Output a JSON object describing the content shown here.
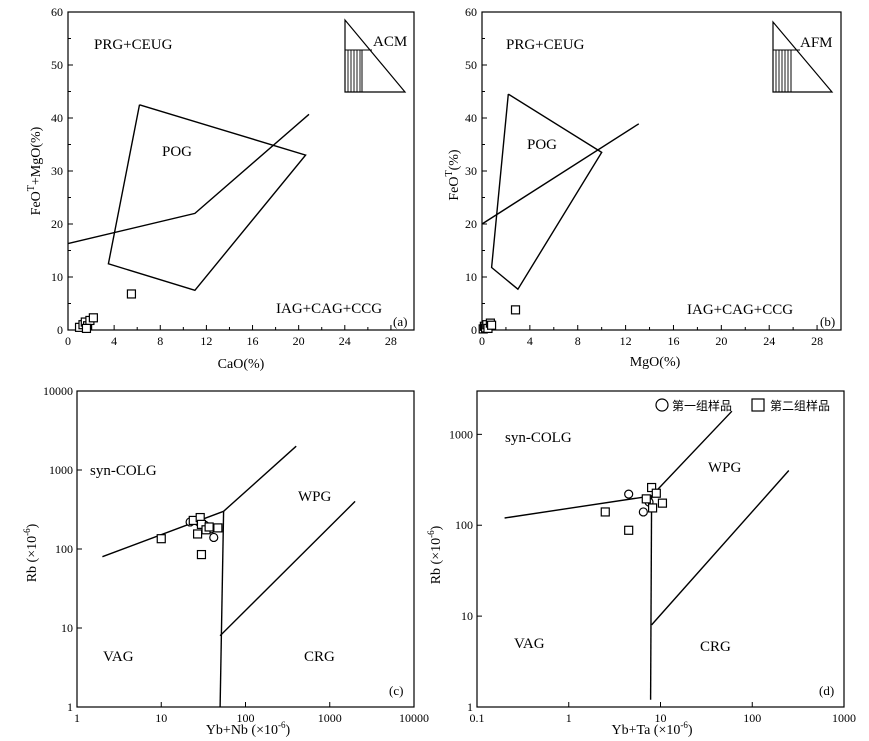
{
  "panels": {
    "a": {
      "label": "(a)",
      "xlabel": "CaO(%)",
      "ylabel": "FeO",
      "ylabel_sup": "T",
      "ylabel_rest": "+MgO(%)",
      "xticks": [
        "0",
        "4",
        "8",
        "12",
        "16",
        "20",
        "24",
        "28"
      ],
      "yticks": [
        "0",
        "10",
        "20",
        "30",
        "40",
        "50",
        "60"
      ],
      "regions": {
        "prg": "PRG+CEUG",
        "pog": "POG",
        "iag": "IAG+CAG+CCG"
      },
      "inset": "ACM"
    },
    "b": {
      "label": "(b)",
      "xlabel": "MgO(%)",
      "ylabel": "FeO",
      "ylabel_sup": "T",
      "ylabel_rest": "(%)",
      "xticks": [
        "0",
        "4",
        "8",
        "12",
        "16",
        "20",
        "24",
        "28"
      ],
      "yticks": [
        "0",
        "10",
        "20",
        "30",
        "40",
        "50",
        "60"
      ],
      "regions": {
        "prg": "PRG+CEUG",
        "pog": "POG",
        "iag": "IAG+CAG+CCG"
      },
      "inset": "AFM"
    },
    "c": {
      "label": "(c)",
      "xlabel_main": "Yb+Nb (×10",
      "xlabel_sup": "-6",
      "xlabel_end": ")",
      "ylabel_main": "Rb (×10",
      "ylabel_sup": "-6",
      "ylabel_end": ")",
      "xticks": [
        "1",
        "10",
        "100",
        "1000",
        "10000"
      ],
      "yticks": [
        "1",
        "10",
        "100",
        "1000",
        "10000"
      ],
      "regions": {
        "syn": "syn-COLG",
        "wpg": "WPG",
        "vag": "VAG",
        "crg": "CRG"
      }
    },
    "d": {
      "label": "(d)",
      "xlabel_main": "Yb+Ta (×10",
      "xlabel_sup": "-6",
      "xlabel_end": ")",
      "ylabel_main": "Rb (×10",
      "ylabel_sup": "-6",
      "ylabel_end": ")",
      "xticks": [
        "0.1",
        "1",
        "10",
        "100",
        "1000"
      ],
      "yticks": [
        "1",
        "10",
        "100",
        "1000"
      ],
      "regions": {
        "syn": "syn-COLG",
        "wpg": "WPG",
        "vag": "VAG",
        "crg": "CRG"
      }
    }
  },
  "legend": {
    "group1": "第一组样品",
    "group2": "第二组样品"
  },
  "chart_data": [
    {
      "type": "scatter",
      "id": "a",
      "xlabel": "CaO(%)",
      "ylabel": "FeOT+MgO(%)",
      "xlim": [
        0,
        30
      ],
      "ylim": [
        0,
        60
      ],
      "boundaries": [
        {
          "name": "POG",
          "points": [
            [
              6.2,
              42.5
            ],
            [
              20.6,
              33
            ],
            [
              11,
              7.5
            ],
            [
              3.5,
              12.5
            ],
            [
              6.2,
              42.5
            ]
          ]
        },
        {
          "name": "line",
          "points": [
            [
              0,
              16.3
            ],
            [
              11,
              22
            ],
            [
              20.9,
              40.7
            ]
          ]
        }
      ],
      "series": [
        {
          "name": "第二组样品",
          "marker": "square",
          "points": [
            [
              1.0,
              0.5
            ],
            [
              1.3,
              1.0
            ],
            [
              1.5,
              1.5
            ],
            [
              1.7,
              0.8
            ],
            [
              1.9,
              1.8
            ],
            [
              2.2,
              2.3
            ],
            [
              1.6,
              0.3
            ],
            [
              5.5,
              6.8
            ]
          ]
        }
      ]
    },
    {
      "type": "scatter",
      "id": "b",
      "xlabel": "MgO(%)",
      "ylabel": "FeOT(%)",
      "xlim": [
        0,
        30
      ],
      "ylim": [
        0,
        60
      ],
      "boundaries": [
        {
          "name": "POG",
          "points": [
            [
              2.2,
              44.5
            ],
            [
              10,
              33.5
            ],
            [
              3,
              7.7
            ],
            [
              0.8,
              11.8
            ],
            [
              2.2,
              44.5
            ]
          ]
        },
        {
          "name": "line",
          "points": [
            [
              0,
              20
            ],
            [
              13.1,
              38.9
            ]
          ]
        }
      ],
      "series": [
        {
          "name": "第二组样品",
          "marker": "square",
          "points": [
            [
              0.1,
              0.2
            ],
            [
              0.2,
              0.7
            ],
            [
              0.3,
              0.4
            ],
            [
              0.4,
              1.0
            ],
            [
              0.5,
              0.3
            ],
            [
              0.7,
              1.3
            ],
            [
              0.8,
              0.9
            ],
            [
              2.8,
              3.8
            ]
          ]
        }
      ]
    },
    {
      "type": "scatter",
      "id": "c",
      "scale": "log",
      "xlabel": "Yb+Nb(×10-6)",
      "ylabel": "Rb(×10-6)",
      "xlim": [
        1,
        10000
      ],
      "ylim": [
        1,
        10000
      ],
      "boundaries": [
        {
          "name": "syn/VAG",
          "points": [
            [
              2,
              80
            ],
            [
              55,
              300
            ]
          ]
        },
        {
          "name": "syn/WPG",
          "points": [
            [
              55,
              300
            ],
            [
              400,
              2000
            ]
          ]
        },
        {
          "name": "VAG/WPG",
          "points": [
            [
              55,
              300
            ],
            [
              50,
              1
            ]
          ]
        },
        {
          "name": "WPG/CRG",
          "points": [
            [
              50,
              8
            ],
            [
              2000,
              400
            ]
          ]
        }
      ],
      "series": [
        {
          "name": "第一组样品",
          "marker": "circle",
          "points": [
            [
              22,
              220
            ],
            [
              28,
              220
            ],
            [
              33,
              200
            ],
            [
              39,
              180
            ],
            [
              42,
              140
            ]
          ]
        },
        {
          "name": "第二组样品",
          "marker": "square",
          "points": [
            [
              10,
              135
            ],
            [
              24,
              230
            ],
            [
              27,
              155
            ],
            [
              29,
              250
            ],
            [
              30,
              205
            ],
            [
              34,
              175
            ],
            [
              37,
              190
            ],
            [
              47,
              185
            ],
            [
              30,
              85
            ]
          ]
        }
      ]
    },
    {
      "type": "scatter",
      "id": "d",
      "scale": "log",
      "xlabel": "Yb+Ta(×10-6)",
      "ylabel": "Rb(×10-6)",
      "xlim": [
        0.1,
        1000
      ],
      "ylim": [
        1,
        3000
      ],
      "boundaries": [
        {
          "name": "syn/VAG",
          "points": [
            [
              0.2,
              120
            ],
            [
              8,
              210
            ]
          ]
        },
        {
          "name": "syn/WPG",
          "points": [
            [
              8,
              210
            ],
            [
              60,
              1800
            ]
          ]
        },
        {
          "name": "VAG/WPG",
          "points": [
            [
              7.8,
              1.2
            ],
            [
              8,
              210
            ]
          ]
        },
        {
          "name": "WPG/CRG",
          "points": [
            [
              8,
              8
            ],
            [
              250,
              400
            ]
          ]
        }
      ],
      "series": [
        {
          "name": "第一组样品",
          "marker": "circle",
          "points": [
            [
              4.5,
              220
            ],
            [
              6.5,
              140
            ],
            [
              7.5,
              180
            ]
          ]
        },
        {
          "name": "第二组样品",
          "marker": "square",
          "points": [
            [
              2.5,
              140
            ],
            [
              4.5,
              88
            ],
            [
              7,
              195
            ],
            [
              8,
              260
            ],
            [
              8.2,
              155
            ],
            [
              9,
              225
            ],
            [
              10.5,
              175
            ]
          ]
        }
      ]
    }
  ]
}
